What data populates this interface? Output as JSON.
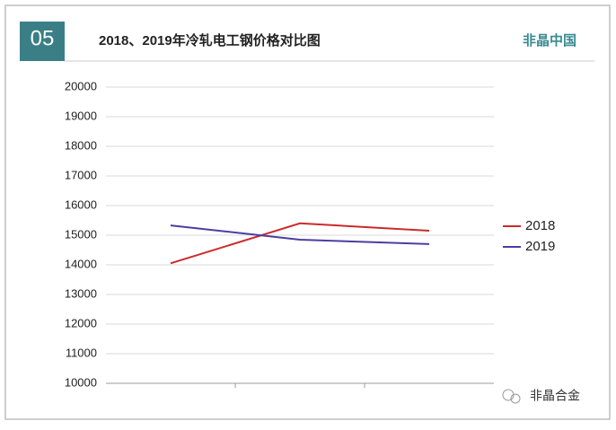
{
  "header": {
    "badge": "05",
    "title": "2018、2019年冷轧电工钢价格对比图",
    "brand": "非晶中国"
  },
  "chart_data": {
    "type": "line",
    "categories": [
      null,
      null,
      null
    ],
    "series": [
      {
        "name": "2018",
        "color": "#cc2a2a",
        "values": [
          14050,
          15400,
          15150
        ]
      },
      {
        "name": "2019",
        "color": "#4a3fa0",
        "values": [
          15330,
          14850,
          14700
        ]
      }
    ],
    "ylim": [
      10000,
      20000
    ],
    "yticks": [
      10000,
      11000,
      12000,
      13000,
      14000,
      15000,
      16000,
      17000,
      18000,
      19000,
      20000
    ],
    "grid": true,
    "legend": "right"
  },
  "watermark": "非晶合金"
}
